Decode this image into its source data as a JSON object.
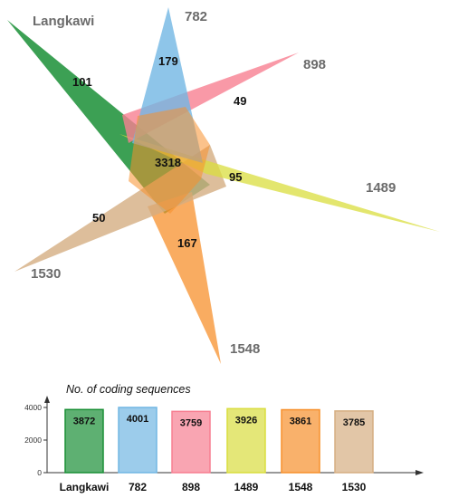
{
  "venn": {
    "sets": [
      {
        "key": "langkawi",
        "label": "Langkawi",
        "color": "#1a8f36",
        "unique": "101"
      },
      {
        "key": "782",
        "label": "782",
        "color": "#72b7e3",
        "unique": "179"
      },
      {
        "key": "898",
        "label": "898",
        "color": "#f77f91",
        "unique": "49"
      },
      {
        "key": "1489",
        "label": "1489",
        "color": "#d9dd3e",
        "unique": "95"
      },
      {
        "key": "1548",
        "label": "1548",
        "color": "#f7902c",
        "unique": "167"
      },
      {
        "key": "1530",
        "label": "1530",
        "color": "#d5ae82",
        "unique": "50"
      }
    ],
    "core": "3318"
  },
  "chart_data": {
    "type": "bar",
    "title": "No. of coding sequences",
    "categories": [
      "Langkawi",
      "782",
      "898",
      "1489",
      "1548",
      "1530"
    ],
    "values": [
      3872,
      4001,
      3759,
      3926,
      3861,
      3785
    ],
    "value_labels": [
      "3872",
      "4001",
      "3759",
      "3926",
      "3861",
      "3785"
    ],
    "colors": [
      "#1a8f36",
      "#72b7e3",
      "#f77f91",
      "#d9dd3e",
      "#f7902c",
      "#d5ae82"
    ],
    "ylim": [
      0,
      4500
    ],
    "y_ticks": [
      0,
      2000,
      4000
    ],
    "y_tick_labels": [
      "0",
      "2000",
      "4000"
    ],
    "xlabel": "",
    "ylabel": ""
  }
}
